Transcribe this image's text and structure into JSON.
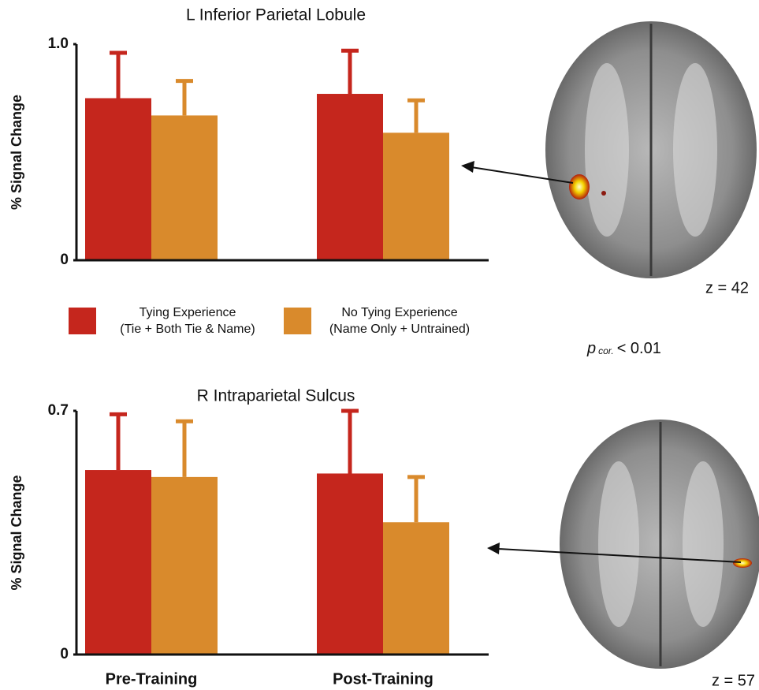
{
  "chart_data": [
    {
      "type": "bar",
      "title": "L Inferior Parietal Lobule",
      "y_label": "% Signal Change",
      "categories": [
        null,
        null
      ],
      "ylim": [
        0,
        1
      ],
      "yticks": [
        0,
        {
          "value": 1,
          "label": "1.0"
        }
      ],
      "series": [
        {
          "name": "Tying Experience",
          "description": "(Tie + Both Tie & Name)",
          "color": "#c5261d",
          "values": [
            0.75,
            0.77
          ],
          "errors": [
            0.21,
            0.2
          ]
        },
        {
          "name": "No Tying Experience",
          "description": "(Name Only + Untrained)",
          "color": "#d98a2c",
          "values": [
            0.67,
            0.59
          ],
          "errors": [
            0.16,
            0.15
          ]
        }
      ]
    },
    {
      "type": "bar",
      "title": "R Intraparietal Sulcus",
      "y_label": "% Signal Change",
      "categories": [
        "Pre-Training",
        "Post-Training"
      ],
      "ylim": [
        0,
        0.7
      ],
      "yticks": [
        0,
        0.7
      ],
      "series": [
        {
          "color": "#c5261d",
          "values": [
            0.53,
            0.52
          ],
          "errors": [
            0.16,
            0.18
          ]
        },
        {
          "color": "#d98a2c",
          "values": [
            0.51,
            0.38
          ],
          "errors": [
            0.16,
            0.13
          ]
        }
      ]
    }
  ],
  "annotations": {
    "top_slice": "z = 42",
    "bottom_slice": "z = 57",
    "threshold": {
      "symbol": "p",
      "subscript": "cor.",
      "text": "< 0.01"
    }
  }
}
